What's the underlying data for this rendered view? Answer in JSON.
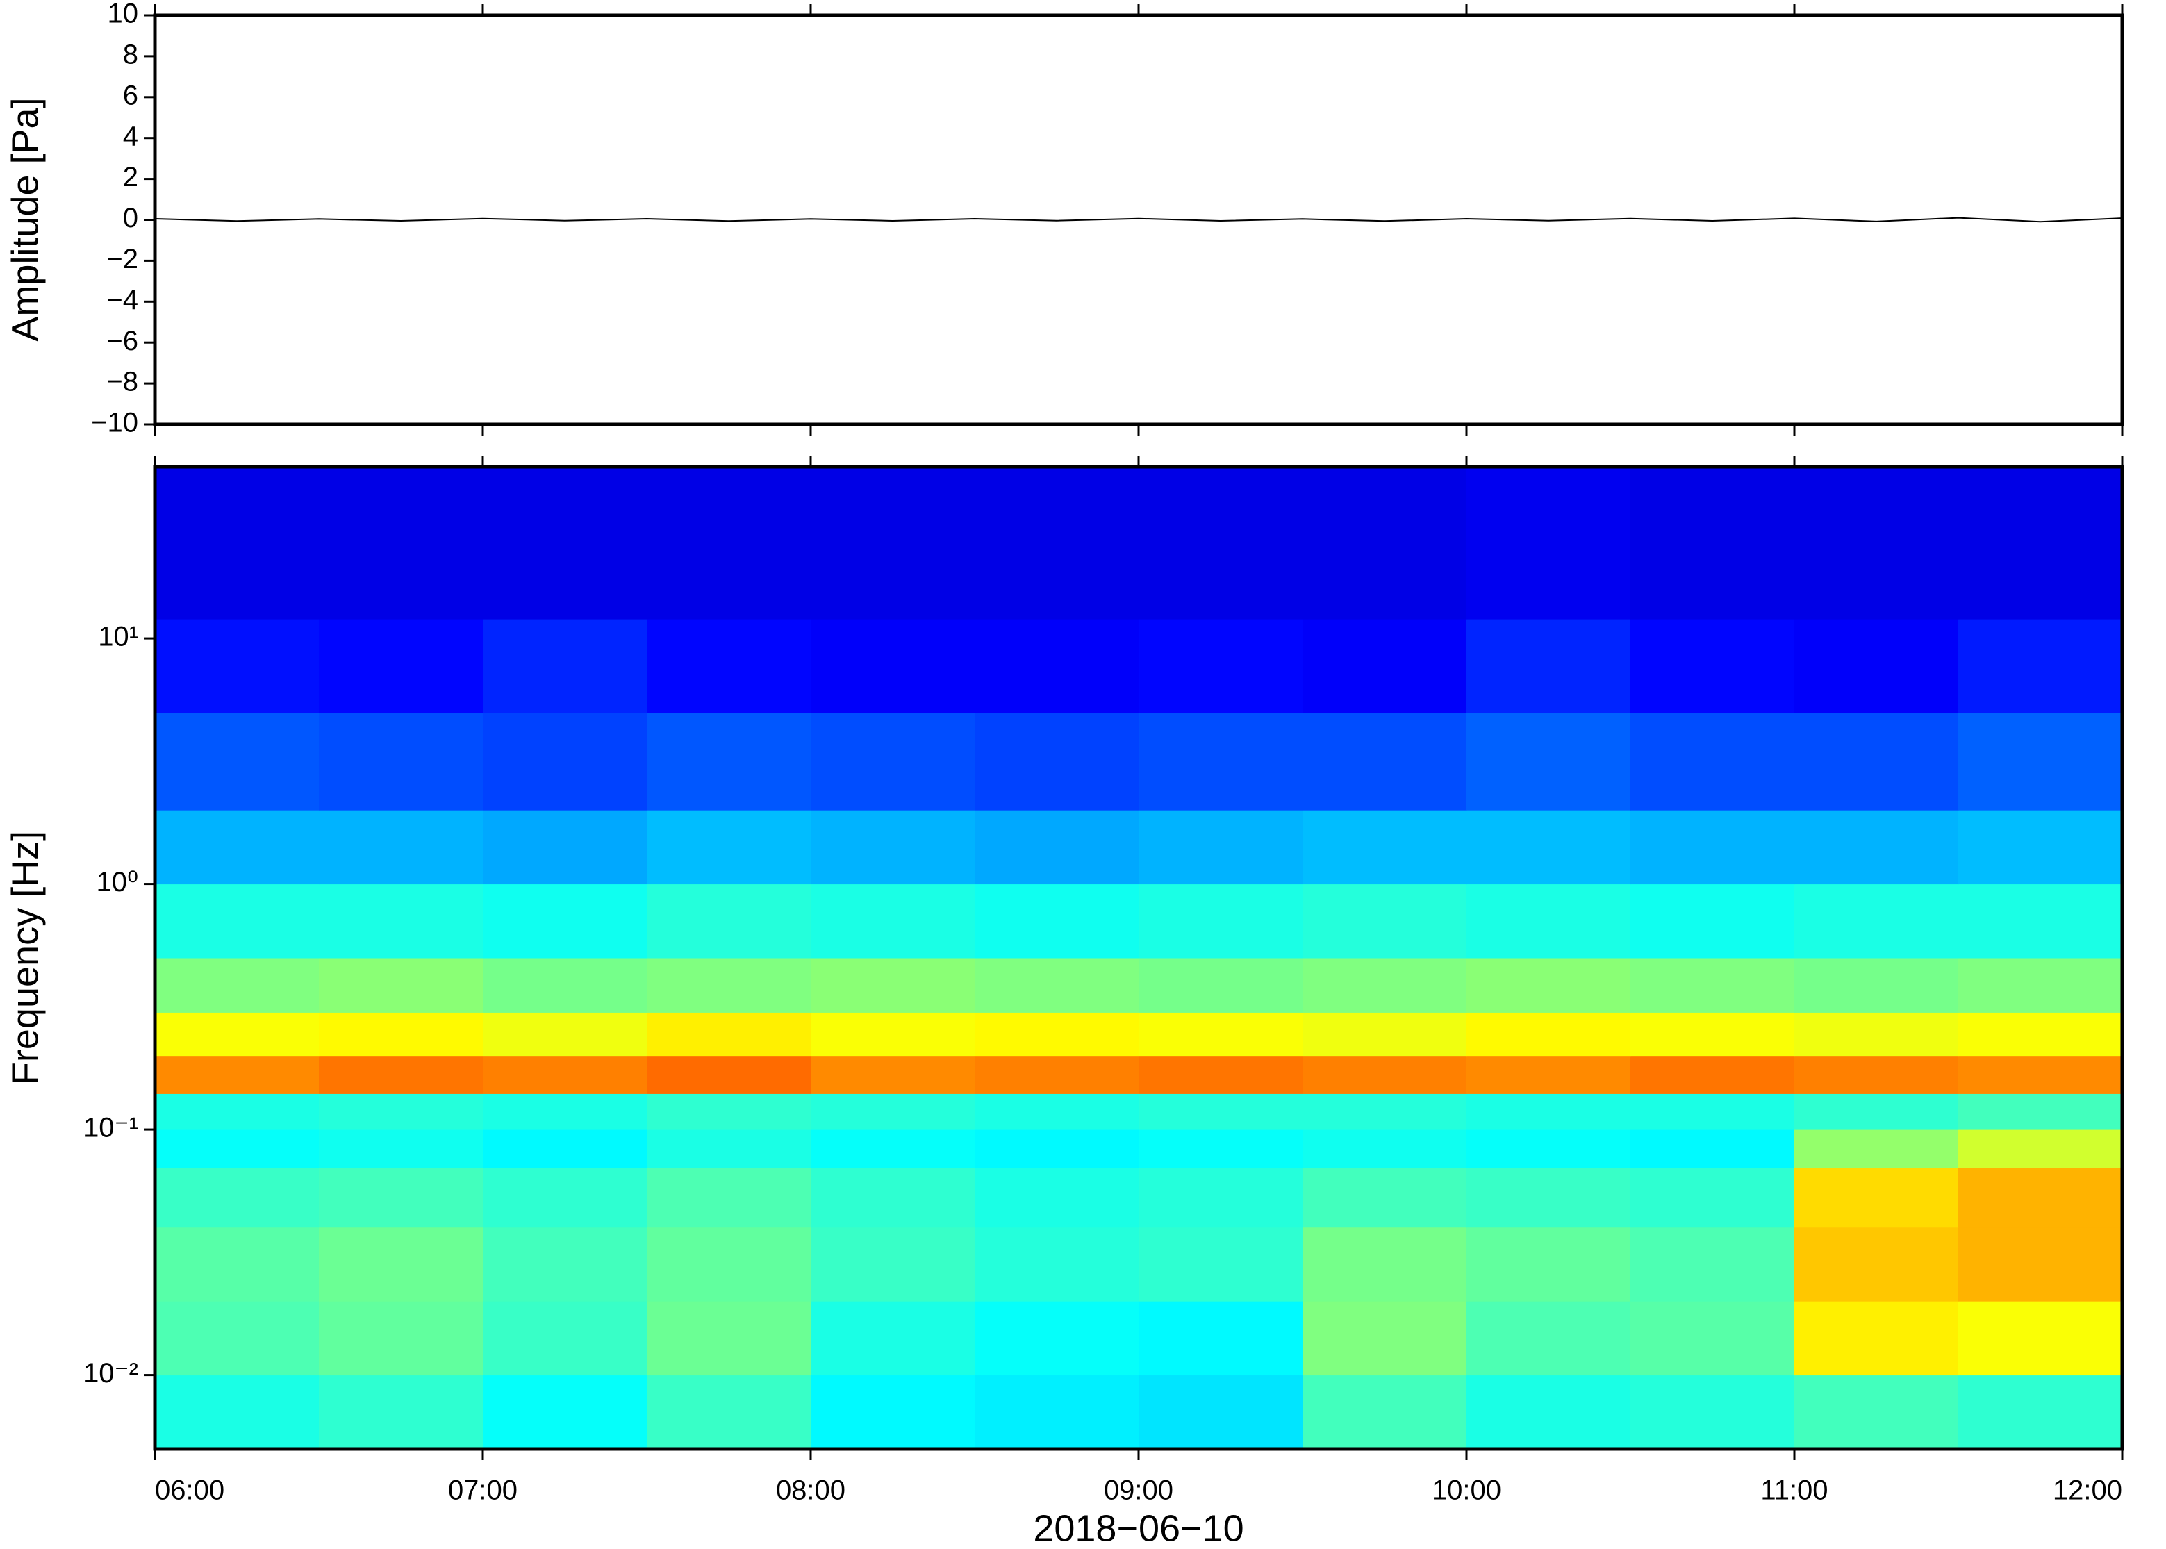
{
  "chart_data": [
    {
      "type": "line",
      "ylabel": "Amplitude [Pa]",
      "xlim": [
        "06:00",
        "12:00"
      ],
      "xticks": [
        "06:00",
        "07:00",
        "08:00",
        "09:00",
        "10:00",
        "11:00",
        "12:00"
      ],
      "ylim": [
        -10,
        10
      ],
      "yticks": [
        {
          "value": -10,
          "label": "−10"
        },
        {
          "value": -8,
          "label": "−8"
        },
        {
          "value": -6,
          "label": "−6"
        },
        {
          "value": -4,
          "label": "−4"
        },
        {
          "value": -2,
          "label": "−2"
        },
        0,
        2,
        4,
        6,
        8,
        10
      ],
      "color": "#000000",
      "x": [
        "06:00",
        "06:15",
        "06:30",
        "06:45",
        "07:00",
        "07:15",
        "07:30",
        "07:45",
        "08:00",
        "08:15",
        "08:30",
        "08:45",
        "09:00",
        "09:15",
        "09:30",
        "09:45",
        "10:00",
        "10:15",
        "10:30",
        "10:45",
        "11:00",
        "11:15",
        "11:30",
        "11:45",
        "12:00"
      ],
      "values": [
        0.05,
        -0.06,
        0.04,
        -0.05,
        0.06,
        -0.04,
        0.05,
        -0.06,
        0.04,
        -0.05,
        0.05,
        -0.04,
        0.06,
        -0.05,
        0.04,
        -0.06,
        0.05,
        -0.04,
        0.06,
        -0.05,
        0.07,
        -0.08,
        0.1,
        -0.09,
        0.08
      ]
    },
    {
      "type": "heatmap",
      "ylabel": "Frequency [Hz]",
      "xlabel": "2018−06−10",
      "xlim": [
        "06:00",
        "12:00"
      ],
      "xticks": [
        "06:00",
        "07:00",
        "08:00",
        "09:00",
        "10:00",
        "11:00",
        "12:00"
      ],
      "yscale": "log",
      "ylim": [
        0.005,
        50
      ],
      "yticks": [
        {
          "value": 0.01,
          "label": "10⁻²"
        },
        {
          "value": 0.1,
          "label": "10⁻¹"
        },
        {
          "value": 1,
          "label": "10⁰"
        },
        {
          "value": 10,
          "label": "10¹"
        }
      ],
      "colormap": "jet",
      "zlim": [
        0,
        1
      ],
      "time_edges": [
        "06:00",
        "06:30",
        "07:00",
        "07:30",
        "08:00",
        "08:30",
        "09:00",
        "09:30",
        "10:00",
        "10:30",
        "11:00",
        "11:30",
        "12:00"
      ],
      "freq_edges": [
        0.005,
        0.01,
        0.02,
        0.04,
        0.07,
        0.1,
        0.14,
        0.2,
        0.3,
        0.5,
        1,
        2,
        5,
        12,
        50
      ],
      "values": [
        [
          0.4,
          0.42,
          0.38,
          0.43,
          0.37,
          0.36,
          0.35,
          0.44,
          0.4,
          0.41,
          0.44,
          0.42
        ],
        [
          0.45,
          0.47,
          0.43,
          0.48,
          0.4,
          0.38,
          0.37,
          0.5,
          0.45,
          0.46,
          0.64,
          0.62
        ],
        [
          0.46,
          0.48,
          0.44,
          0.47,
          0.43,
          0.41,
          0.42,
          0.49,
          0.47,
          0.45,
          0.68,
          0.7
        ],
        [
          0.43,
          0.44,
          0.42,
          0.45,
          0.42,
          0.4,
          0.41,
          0.44,
          0.43,
          0.42,
          0.66,
          0.7
        ],
        [
          0.38,
          0.39,
          0.37,
          0.4,
          0.38,
          0.37,
          0.38,
          0.39,
          0.38,
          0.37,
          0.52,
          0.58
        ],
        [
          0.4,
          0.41,
          0.4,
          0.42,
          0.41,
          0.4,
          0.41,
          0.41,
          0.4,
          0.4,
          0.42,
          0.44
        ],
        [
          0.74,
          0.76,
          0.75,
          0.77,
          0.74,
          0.75,
          0.76,
          0.75,
          0.74,
          0.76,
          0.75,
          0.74
        ],
        [
          0.62,
          0.63,
          0.61,
          0.64,
          0.62,
          0.63,
          0.62,
          0.61,
          0.63,
          0.62,
          0.61,
          0.62
        ],
        [
          0.5,
          0.51,
          0.49,
          0.5,
          0.51,
          0.5,
          0.49,
          0.5,
          0.51,
          0.5,
          0.49,
          0.5
        ],
        [
          0.4,
          0.4,
          0.39,
          0.41,
          0.4,
          0.39,
          0.4,
          0.41,
          0.4,
          0.39,
          0.4,
          0.4
        ],
        [
          0.3,
          0.3,
          0.29,
          0.31,
          0.3,
          0.29,
          0.3,
          0.31,
          0.31,
          0.3,
          0.3,
          0.31
        ],
        [
          0.21,
          0.2,
          0.19,
          0.21,
          0.2,
          0.19,
          0.2,
          0.2,
          0.22,
          0.2,
          0.2,
          0.22
        ],
        [
          0.14,
          0.13,
          0.16,
          0.13,
          0.12,
          0.12,
          0.13,
          0.12,
          0.16,
          0.13,
          0.12,
          0.15
        ],
        [
          0.1,
          0.1,
          0.1,
          0.1,
          0.1,
          0.1,
          0.1,
          0.1,
          0.11,
          0.1,
          0.1,
          0.1
        ]
      ]
    }
  ]
}
